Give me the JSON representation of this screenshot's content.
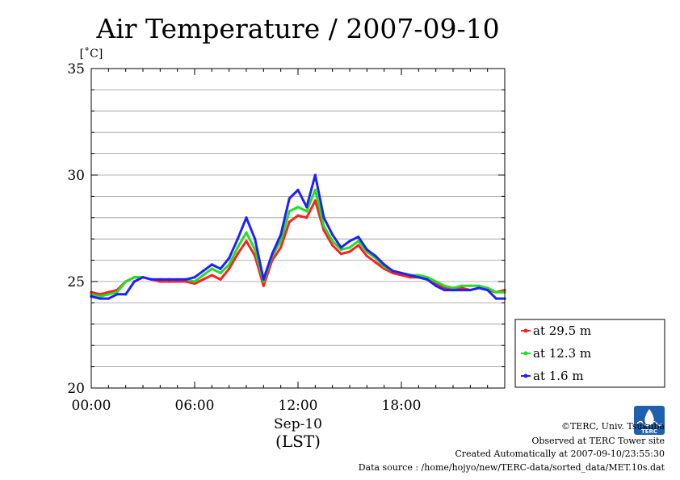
{
  "chart_data": {
    "type": "line",
    "title": "Air Temperature / 2007-09-10",
    "ylabel": "[˚C]",
    "xlabel": "Sep-10",
    "xlabel2": "(LST)",
    "xlim": [
      0,
      24
    ],
    "ylim": [
      20,
      35
    ],
    "x_ticks": [
      {
        "value": 0,
        "label": "00:00"
      },
      {
        "value": 6,
        "label": "06:00"
      },
      {
        "value": 12,
        "label": "12:00"
      },
      {
        "value": 18,
        "label": "18:00"
      }
    ],
    "y_ticks": [
      {
        "value": 20,
        "label": "20"
      },
      {
        "value": 25,
        "label": "25"
      },
      {
        "value": 30,
        "label": "30"
      },
      {
        "value": 35,
        "label": "35"
      }
    ],
    "grid": true,
    "legend_position": "bottom-right outside",
    "series": [
      {
        "name": "at 29.5 m",
        "color": "#ff2020",
        "x": [
          0,
          0.5,
          1,
          1.5,
          2,
          2.5,
          3,
          3.5,
          4,
          4.5,
          5,
          5.5,
          6,
          6.5,
          7,
          7.5,
          8,
          8.5,
          9,
          9.5,
          10,
          10.5,
          11,
          11.5,
          12,
          12.5,
          13,
          13.5,
          14,
          14.5,
          15,
          15.5,
          16,
          16.5,
          17,
          17.5,
          18,
          18.5,
          19,
          19.5,
          20,
          20.5,
          21,
          21.5,
          22,
          22.5,
          23,
          23.5,
          24
        ],
        "values": [
          24.5,
          24.4,
          24.5,
          24.6,
          25.0,
          25.2,
          25.2,
          25.1,
          25.0,
          25.0,
          25.0,
          25.0,
          24.9,
          25.1,
          25.3,
          25.1,
          25.6,
          26.3,
          26.9,
          26.2,
          24.8,
          26.0,
          26.6,
          27.8,
          28.1,
          28.0,
          28.8,
          27.4,
          26.7,
          26.3,
          26.4,
          26.7,
          26.2,
          25.9,
          25.6,
          25.4,
          25.3,
          25.2,
          25.2,
          25.1,
          24.9,
          24.7,
          24.6,
          24.7,
          24.6,
          24.7,
          24.6,
          24.5,
          24.6
        ]
      },
      {
        "name": "at 12.3 m",
        "color": "#20e020",
        "x": [
          0,
          0.5,
          1,
          1.5,
          2,
          2.5,
          3,
          3.5,
          4,
          4.5,
          5,
          5.5,
          6,
          6.5,
          7,
          7.5,
          8,
          8.5,
          9,
          9.5,
          10,
          10.5,
          11,
          11.5,
          12,
          12.5,
          13,
          13.5,
          14,
          14.5,
          15,
          15.5,
          16,
          16.5,
          17,
          17.5,
          18,
          18.5,
          19,
          19.5,
          20,
          20.5,
          21,
          21.5,
          22,
          22.5,
          23,
          23.5,
          24
        ],
        "values": [
          24.4,
          24.3,
          24.4,
          24.5,
          25.0,
          25.2,
          25.2,
          25.1,
          25.1,
          25.1,
          25.1,
          25.1,
          25.0,
          25.3,
          25.6,
          25.4,
          25.8,
          26.6,
          27.3,
          26.5,
          25.0,
          26.2,
          26.9,
          28.3,
          28.5,
          28.3,
          29.3,
          27.6,
          26.9,
          26.5,
          26.6,
          26.9,
          26.4,
          26.1,
          25.7,
          25.5,
          25.4,
          25.3,
          25.3,
          25.2,
          25.0,
          24.8,
          24.7,
          24.8,
          24.8,
          24.8,
          24.7,
          24.5,
          24.5
        ]
      },
      {
        "name": "at 1.6 m",
        "color": "#2020ff",
        "x": [
          0,
          0.5,
          1,
          1.5,
          2,
          2.5,
          3,
          3.5,
          4,
          4.5,
          5,
          5.5,
          6,
          6.5,
          7,
          7.5,
          8,
          8.5,
          9,
          9.5,
          10,
          10.5,
          11,
          11.5,
          12,
          12.5,
          13,
          13.5,
          14,
          14.5,
          15,
          15.5,
          16,
          16.5,
          17,
          17.5,
          18,
          18.5,
          19,
          19.5,
          20,
          20.5,
          21,
          21.5,
          22,
          22.5,
          23,
          23.5,
          24
        ],
        "values": [
          24.3,
          24.2,
          24.2,
          24.4,
          24.4,
          25.0,
          25.2,
          25.1,
          25.1,
          25.1,
          25.1,
          25.1,
          25.2,
          25.5,
          25.8,
          25.6,
          26.1,
          27.0,
          28.0,
          27.0,
          25.1,
          26.3,
          27.2,
          28.9,
          29.3,
          28.5,
          30.0,
          28.0,
          27.2,
          26.6,
          26.9,
          27.1,
          26.5,
          26.2,
          25.8,
          25.5,
          25.4,
          25.3,
          25.2,
          25.1,
          24.8,
          24.6,
          24.6,
          24.6,
          24.6,
          24.7,
          24.6,
          24.2,
          24.2
        ]
      }
    ]
  },
  "credits": {
    "line1": "©TERC, Univ. Tsukuba",
    "line2": "Observed at TERC Tower site",
    "line3": "Created Automatically at 2007-09-10/23:55:30",
    "line4": "Data source : /home/hojyo/new/TERC-data/sorted_data/MET.10s.dat"
  },
  "logo": {
    "text": "TERC",
    "color": "#1f5fb0"
  }
}
